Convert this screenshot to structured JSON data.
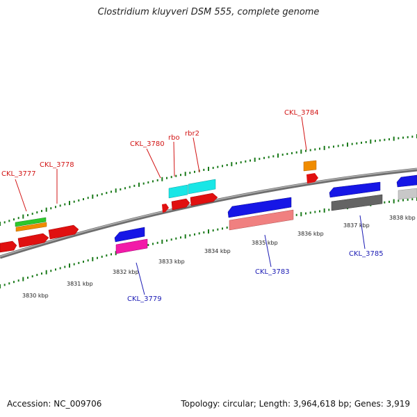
{
  "title": "Clostridium kluyveri DSM 555, complete genome",
  "footer": {
    "accession": "Accession: NC_009706",
    "topology": "Topology: circular; Length: 3,964,618 bp; Genes: 3,919"
  },
  "kbp_labels": [
    "3830 kbp",
    "3831 kbp",
    "3832 kbp",
    "3833 kbp",
    "3834 kbp",
    "3835 kbp",
    "3836 kbp",
    "3837 kbp",
    "3838 kbp"
  ],
  "gene_labels": {
    "CKL_3777": "CKL_3777",
    "CKL_3778": "CKL_3778",
    "CKL_3780": "CKL_3780",
    "rbo": "rbo",
    "rbr2": "rbr2",
    "CKL_3784": "CKL_3784",
    "CKL_3779": "CKL_3779",
    "CKL_3783": "CKL_3783",
    "CKL_3785": "CKL_3785"
  },
  "colors": {
    "backbone": "#8c8c8c",
    "red": "#e01010",
    "cyan": "#19e6e6",
    "orange": "#f08c00",
    "green": "#2cc82c",
    "blue": "#1616e6",
    "magenta": "#f21aa8",
    "salmon": "#f08080",
    "darkgray": "#646464",
    "lightgray": "#c8c8c8",
    "tick": "#1a7a1a",
    "label_red": "#d21414",
    "label_blue": "#1a1ab4"
  }
}
